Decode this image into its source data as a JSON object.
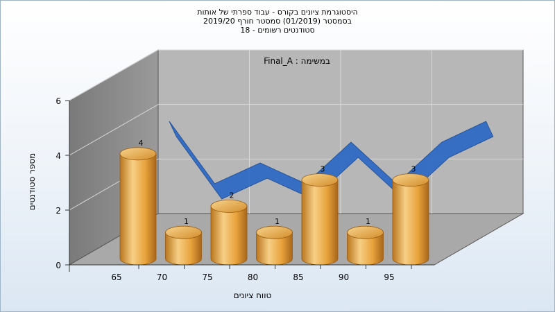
{
  "titles": {
    "line1": "היסטוגרמת ציונים בקורס - עבוד ספרתי של אותות",
    "line2": "בסמסטר  (01/2019)  סמסטר חורף  2019/20",
    "line3": "סטודנטים רשומים - 18"
  },
  "chart_data": {
    "type": "bar",
    "annotation": "במשימה : Final_A",
    "categories": [
      "65",
      "70",
      "75",
      "80",
      "85",
      "90",
      "95"
    ],
    "values": [
      4,
      1,
      2,
      1,
      3,
      1,
      3
    ],
    "value_labels": [
      "4",
      "1",
      "2",
      "1",
      "3",
      "1",
      "3"
    ],
    "x_ticks": [
      "65",
      "70",
      "75",
      "80",
      "85",
      "90",
      "95"
    ],
    "y_ticks": [
      "0",
      "2",
      "4",
      "6"
    ],
    "ylim": [
      0,
      6
    ],
    "xlabel": "טווח ציונים",
    "ylabel": "מספר סטודנטים",
    "colors": {
      "bar": "#e8a33c",
      "bar_light": "#f6cf86",
      "bar_dark": "#b9761e",
      "ribbon": "#2f6bc4",
      "back_wall": "#b7b7b7",
      "side_wall": "#8c8c8c",
      "floor": "#a9a9a9",
      "grid": "#d8d8d8"
    }
  }
}
